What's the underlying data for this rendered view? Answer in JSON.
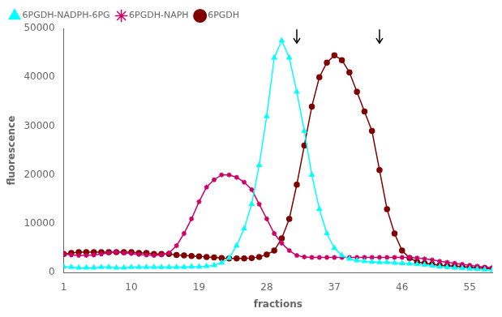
{
  "chart_data": {
    "type": "line",
    "xlabel": "fractions",
    "ylabel": "fluorescence",
    "xlim": [
      1,
      58
    ],
    "ylim": [
      0,
      50000
    ],
    "xticks": [
      1,
      10,
      19,
      28,
      37,
      46,
      55
    ],
    "yticks": [
      0,
      10000,
      20000,
      30000,
      40000,
      50000
    ],
    "grid": false,
    "legend": "upper left",
    "annotations": [
      {
        "x": 32,
        "y": 47000,
        "y_start": 49800
      },
      {
        "x": 43,
        "y": 47000,
        "y_start": 49800
      }
    ],
    "x": [
      1,
      2,
      3,
      4,
      5,
      6,
      7,
      8,
      9,
      10,
      11,
      12,
      13,
      14,
      15,
      16,
      17,
      18,
      19,
      20,
      21,
      22,
      23,
      24,
      25,
      26,
      27,
      28,
      29,
      30,
      31,
      32,
      33,
      34,
      35,
      36,
      37,
      38,
      39,
      40,
      41,
      42,
      43,
      44,
      45,
      46,
      47,
      48,
      49,
      50,
      51,
      52,
      53,
      54,
      55,
      56,
      57,
      58
    ],
    "series": [
      {
        "name": "6PGDH-NADPH-6PG",
        "color": "#00ffff",
        "marker": "triangle",
        "values": [
          1200,
          1100,
          1000,
          1000,
          1000,
          1100,
          1100,
          1000,
          1000,
          1100,
          1100,
          1100,
          1100,
          1100,
          1100,
          1100,
          1100,
          1200,
          1200,
          1300,
          1500,
          2000,
          3000,
          5500,
          9000,
          14000,
          22000,
          32000,
          44000,
          47500,
          44000,
          37000,
          29000,
          20000,
          13000,
          8000,
          5000,
          3500,
          2800,
          2500,
          2300,
          2200,
          2100,
          2100,
          2000,
          1900,
          1800,
          1700,
          1600,
          1400,
          1200,
          1100,
          1000,
          900,
          800,
          700,
          600,
          500
        ]
      },
      {
        "name": "6PGDH-NAPH",
        "color": "#cc0066",
        "marker": "star",
        "values": [
          3800,
          3600,
          3500,
          3500,
          3600,
          3800,
          4000,
          4200,
          4000,
          3900,
          3700,
          3600,
          3500,
          3600,
          4000,
          5500,
          8000,
          11000,
          14500,
          17500,
          19000,
          20000,
          20000,
          19500,
          18500,
          17000,
          14000,
          11000,
          8000,
          6000,
          4500,
          3500,
          3200,
          3100,
          3100,
          3100,
          3100,
          3100,
          3100,
          3100,
          3100,
          3100,
          3100,
          3100,
          3100,
          3100,
          3100,
          3000,
          2800,
          2600,
          2300,
          2100,
          1900,
          1700,
          1500,
          1300,
          1100,
          1000
        ]
      },
      {
        "name": "6PGDH",
        "color": "#800000",
        "marker": "circle",
        "values": [
          3800,
          4000,
          4200,
          4200,
          4200,
          4200,
          4200,
          4200,
          4200,
          4200,
          4000,
          4000,
          3800,
          3800,
          3800,
          3600,
          3500,
          3400,
          3300,
          3200,
          3100,
          3000,
          2900,
          2900,
          2900,
          3000,
          3200,
          3700,
          4500,
          7000,
          11000,
          18000,
          26000,
          34000,
          40000,
          43000,
          44500,
          43500,
          41000,
          37000,
          33000,
          29000,
          21000,
          13000,
          8000,
          4500,
          3000,
          2200,
          1900,
          1700,
          1500,
          1400,
          1300,
          1200,
          1100,
          1000,
          900,
          800
        ]
      }
    ]
  }
}
